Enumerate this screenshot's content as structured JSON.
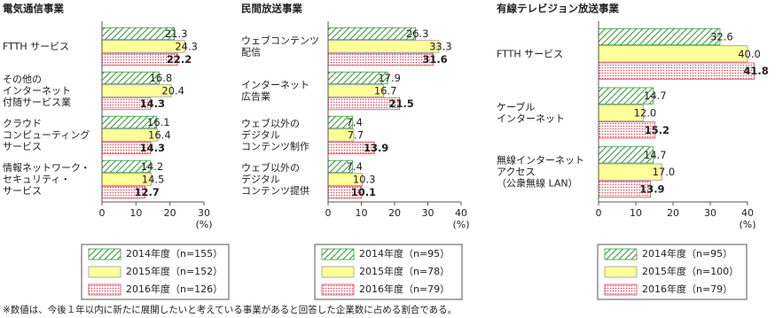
{
  "chart_data": [
    {
      "type": "bar",
      "orientation": "horizontal",
      "title": "電気通信事業",
      "categories": [
        "FTTH サービス",
        "その他の\nインターネット\n付随サービス業",
        "クラウド\nコンピューティング\nサービス",
        "情報ネットワーク・\nセキュリティ・\nサービス"
      ],
      "series": [
        {
          "name": "2014年度（n=155）",
          "color": "#3a9a3a",
          "pattern": "hatch",
          "values": [
            21.3,
            16.8,
            16.1,
            14.2
          ],
          "value_labels": [
            "21.3",
            "16.8",
            "16.1",
            "14.2"
          ]
        },
        {
          "name": "2015年度（n=152）",
          "color": "#ffff99",
          "pattern": "solid",
          "values": [
            24.3,
            20.4,
            16.4,
            14.5
          ],
          "value_labels": [
            "24.3",
            "20.4",
            "16.4",
            "14.5"
          ]
        },
        {
          "name": "2016年度（n=126）",
          "color": "#e8435a",
          "pattern": "dots",
          "bold_labels": true,
          "values": [
            22.2,
            14.3,
            14.3,
            12.7
          ],
          "value_labels": [
            "22.2",
            "14.3",
            "14.3",
            "12.7"
          ]
        }
      ],
      "xlim": [
        0,
        30
      ],
      "xticks": [
        0,
        10,
        20,
        30
      ],
      "xlabel": "(%)"
    },
    {
      "type": "bar",
      "orientation": "horizontal",
      "title": "民間放送事業",
      "categories": [
        "ウェブコンテンツ\n配信",
        "インターネット\n広告業",
        "ウェブ以外の\nデジタル\nコンテンツ制作",
        "ウェブ以外の\nデジタル\nコンテンツ提供"
      ],
      "series": [
        {
          "name": "2014年度（n=95）",
          "color": "#3a9a3a",
          "pattern": "hatch",
          "values": [
            26.3,
            17.9,
            7.4,
            7.4
          ],
          "value_labels": [
            "26.3",
            "17.9",
            "7.4",
            "7.4"
          ]
        },
        {
          "name": "2015年度（n=78）",
          "color": "#ffff99",
          "pattern": "solid",
          "values": [
            33.3,
            16.7,
            7.7,
            10.3
          ],
          "value_labels": [
            "33.3",
            "16.7",
            "7.7",
            "10.3"
          ]
        },
        {
          "name": "2016年度（n=79）",
          "color": "#e8435a",
          "pattern": "dots",
          "bold_labels": true,
          "values": [
            31.6,
            21.5,
            13.9,
            10.1
          ],
          "value_labels": [
            "31.6",
            "21.5",
            "13.9",
            "10.1"
          ]
        }
      ],
      "xlim": [
        0,
        40
      ],
      "xticks": [
        0,
        10,
        20,
        30,
        40
      ],
      "xlabel": "(%)"
    },
    {
      "type": "bar",
      "orientation": "horizontal",
      "title": "有線テレビジョン放送事業",
      "categories": [
        "FTTH サービス",
        "ケーブル\nインターネット",
        "無線インターネット\nアクセス\n（公衆無線 LAN）"
      ],
      "series": [
        {
          "name": "2014年度（n=95）",
          "color": "#3a9a3a",
          "pattern": "hatch",
          "values": [
            32.6,
            14.7,
            14.7
          ],
          "value_labels": [
            "32.6",
            "14.7",
            "14.7"
          ]
        },
        {
          "name": "2015年度（n=100）",
          "color": "#ffff99",
          "pattern": "solid",
          "values": [
            40.0,
            12.0,
            17.0
          ],
          "value_labels": [
            "40.0",
            "12.0",
            "17.0"
          ]
        },
        {
          "name": "2016年度（n=79）",
          "color": "#e8435a",
          "pattern": "dots",
          "bold_labels": true,
          "values": [
            41.8,
            15.2,
            13.9
          ],
          "value_labels": [
            "41.8",
            "15.2",
            "13.9"
          ]
        }
      ],
      "xlim": [
        0,
        40
      ],
      "xticks": [
        0,
        10,
        20,
        30,
        40
      ],
      "xlabel": "(%)"
    }
  ],
  "footnote": "※数値は、今後１年以内に新たに展開したいと考えている事業があると回答した企業数に占める割合である。"
}
